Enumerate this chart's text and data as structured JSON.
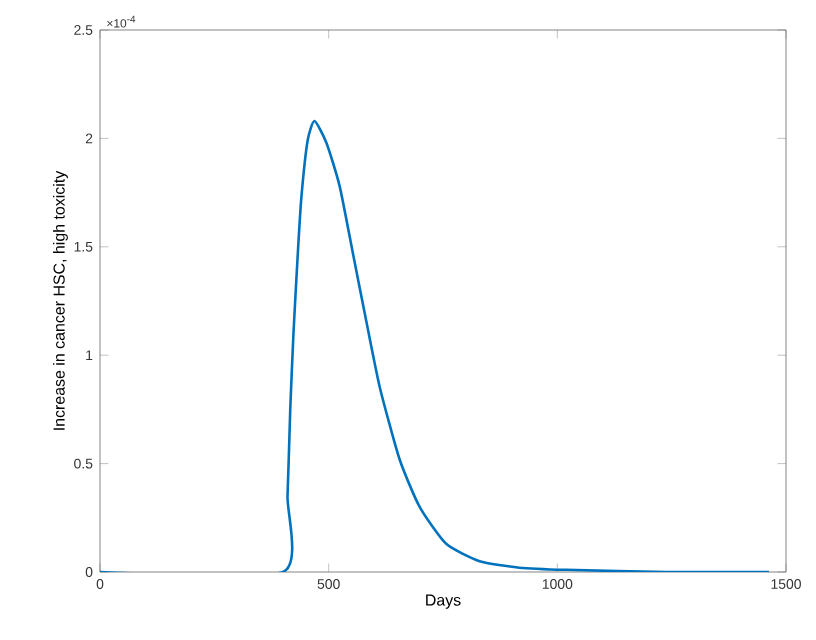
{
  "chart_data": {
    "type": "line",
    "xlabel": "Days",
    "ylabel": "Increase in cancer HSC, high toxicity",
    "annotations": [
      "×10$^{-4}$"
    ],
    "xlim": [
      0,
      1500
    ],
    "xticks": [
      0,
      500,
      1000,
      1500
    ],
    "ylim": [
      0,
      2.5
    ],
    "yticks": [
      0,
      0.5,
      1,
      1.5,
      2,
      2.5
    ],
    "series": [
      {
        "color": "#0072bd",
        "x": [
          0,
          400,
          410,
          416,
          423,
          432,
          440,
          454,
          469,
          495,
          524,
          553,
          582,
          612,
          655,
          699,
          757,
          830,
          917,
          1019,
          1238,
          1463
        ],
        "values": [
          0,
          0,
          0.35,
          0.75,
          1.1,
          1.45,
          1.72,
          1.99,
          2.08,
          1.98,
          1.78,
          1.47,
          1.16,
          0.85,
          0.52,
          0.3,
          0.13,
          0.05,
          0.02,
          0.01,
          0,
          0
        ]
      }
    ]
  }
}
